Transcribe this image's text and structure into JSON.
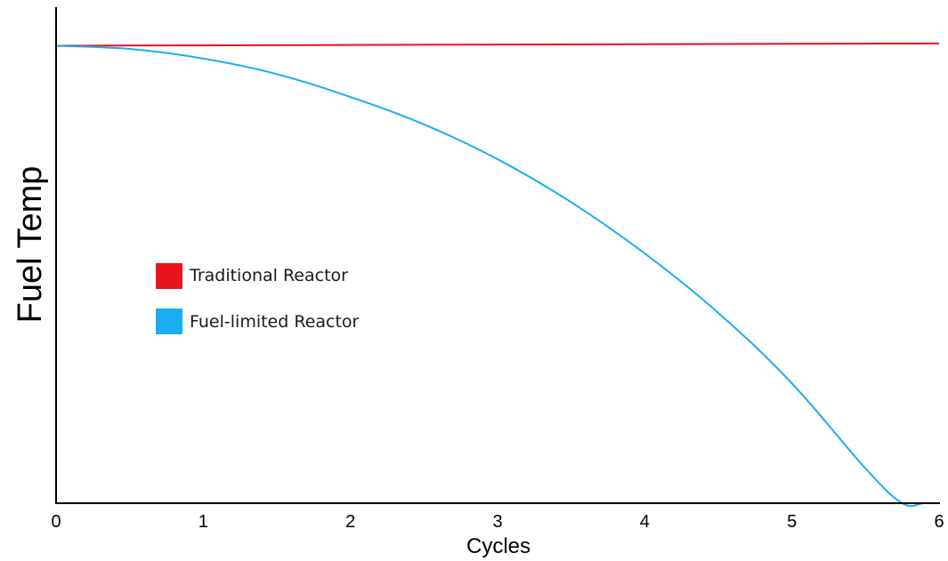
{
  "chart_data": {
    "type": "line",
    "title": "",
    "xlabel": "Cycles",
    "ylabel": "Fuel Temp",
    "x_ticks": [
      0,
      1,
      2,
      3,
      4,
      5,
      6
    ],
    "xlim": [
      0,
      6
    ],
    "ylim": [
      0,
      1.1
    ],
    "y_ticks_shown": false,
    "grid": false,
    "legend_position": "middle-left",
    "series": [
      {
        "name": "Traditional Reactor",
        "color": "#e8141c",
        "x": [
          0,
          6
        ],
        "y": [
          1.0,
          1.005
        ]
      },
      {
        "name": "Fuel-limited Reactor",
        "color": "#1aaef0",
        "x": [
          0,
          0.5,
          1,
          1.5,
          2,
          2.5,
          3,
          3.5,
          4,
          4.5,
          5,
          5.5,
          5.75,
          5.9,
          6
        ],
        "y": [
          1.0,
          0.993,
          0.972,
          0.938,
          0.888,
          0.828,
          0.752,
          0.658,
          0.546,
          0.416,
          0.262,
          0.076,
          0.0,
          0.0,
          0.0
        ]
      }
    ]
  }
}
